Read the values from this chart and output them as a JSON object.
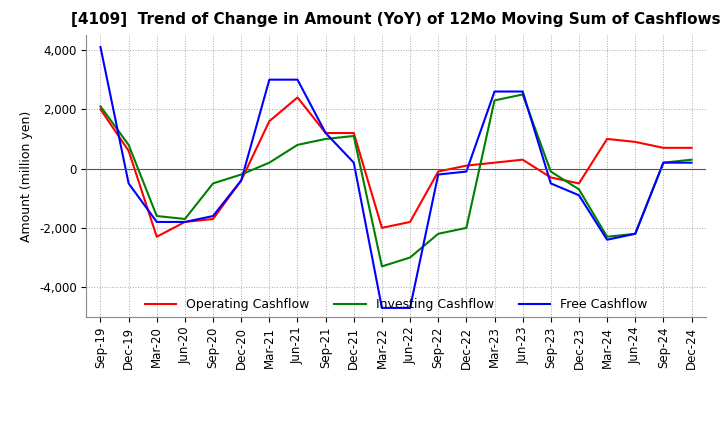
{
  "title": "[4109]  Trend of Change in Amount (YoY) of 12Mo Moving Sum of Cashflows",
  "ylabel": "Amount (million yen)",
  "x_labels": [
    "Sep-19",
    "Dec-19",
    "Mar-20",
    "Jun-20",
    "Sep-20",
    "Dec-20",
    "Mar-21",
    "Jun-21",
    "Sep-21",
    "Dec-21",
    "Mar-22",
    "Jun-22",
    "Sep-22",
    "Dec-22",
    "Mar-23",
    "Jun-23",
    "Sep-23",
    "Dec-23",
    "Mar-24",
    "Jun-24",
    "Sep-24",
    "Dec-24"
  ],
  "operating": [
    2000,
    600,
    -2300,
    -1800,
    -1700,
    -400,
    1600,
    2400,
    1200,
    1200,
    -2000,
    -1800,
    -100,
    100,
    200,
    300,
    -300,
    -500,
    1000,
    900,
    700,
    700
  ],
  "investing": [
    2100,
    800,
    -1600,
    -1700,
    -500,
    -200,
    200,
    800,
    1000,
    1100,
    -3300,
    -3000,
    -2200,
    -2000,
    2300,
    2500,
    -100,
    -700,
    -2300,
    -2200,
    200,
    300
  ],
  "free": [
    4100,
    -500,
    -1800,
    -1800,
    -1600,
    -400,
    3000,
    3000,
    1200,
    200,
    -4700,
    -4700,
    -200,
    -100,
    2600,
    2600,
    -500,
    -900,
    -2400,
    -2200,
    200,
    200
  ],
  "ylim": [
    -5000,
    4500
  ],
  "yticks": [
    -4000,
    -2000,
    0,
    2000,
    4000
  ],
  "operating_color": "#ff0000",
  "investing_color": "#008000",
  "free_color": "#0000ff",
  "background_color": "#ffffff",
  "grid_color": "#aaaaaa",
  "title_fontsize": 11,
  "label_fontsize": 9,
  "tick_fontsize": 8.5
}
